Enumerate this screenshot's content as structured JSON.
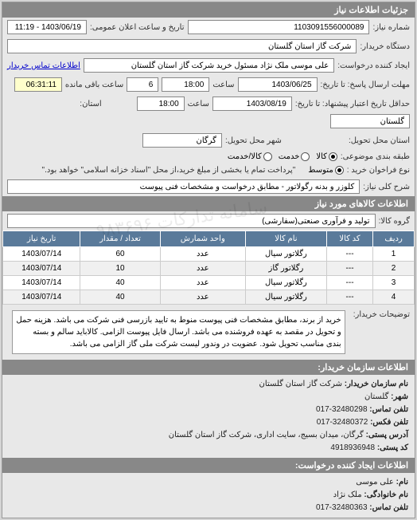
{
  "header": {
    "title": "جزئیات اطلاعات نیاز"
  },
  "form": {
    "requestNo": {
      "label": "شماره نیاز:",
      "value": "1103091556000089"
    },
    "announceDate": {
      "label": "تاریخ و ساعت اعلان عمومی:",
      "value": "1403/06/19 - 11:19"
    },
    "buyer": {
      "label": "دستگاه خریدار:",
      "value": "شرکت گاز استان گلستان"
    },
    "creator": {
      "label": "ایجاد کننده درخواست:",
      "value": "علی موسی ملک نژاد مسئول خرید شرکت گاز استان گلستان"
    },
    "contactLink": "اطلاعات تماس خریدار",
    "deadlineSend": {
      "label": "مهلت ارسال پاسخ: تا تاریخ:",
      "date": "1403/06/25",
      "timeLabel": "ساعت",
      "time": "18:00",
      "daysLeft": "6",
      "remainLabel": "ساعت باقی مانده",
      "remain": "06:31:11"
    },
    "validity": {
      "label": "حداقل تاریخ اعتبار پیشنهاد: تا تاریخ:",
      "date": "1403/08/19",
      "timeLabel": "ساعت",
      "time": "18:00"
    },
    "province": {
      "label": "استان:",
      "value": "گلستان"
    },
    "deliveryPlace": {
      "label": "استان محل تحویل:"
    },
    "city": {
      "label": "شهر محل تحویل:",
      "value": "گرگان"
    },
    "classify": {
      "label": "طبقه بندی موضوعی:",
      "options": [
        {
          "label": "کالا",
          "selected": true
        },
        {
          "label": "خدمت",
          "selected": false
        },
        {
          "label": "کالا/خدمت",
          "selected": false
        }
      ]
    },
    "paymentType": {
      "label": "نوع فراخوان خرید :",
      "options": [
        {
          "label": "متوسط",
          "selected": true
        }
      ],
      "note": "\"پرداخت تمام یا بخشی از مبلغ خرید،از محل \"اسناد خزانه اسلامی\" خواهد بود.\""
    },
    "subject": {
      "label": "شرح کلی نیاز:",
      "value": "کلوزر و بدنه رگولاتور - مطابق درخواست و مشخصات فنی پیوست"
    }
  },
  "itemsHeader": "اطلاعات کالاهای مورد نیاز",
  "group": {
    "label": "گروه کالا:",
    "value": "تولید و فرآوری صنعتی(سفارشی)"
  },
  "table": {
    "columns": [
      "ردیف",
      "کد کالا",
      "نام کالا",
      "واحد شمارش",
      "تعداد / مقدار",
      "تاریخ نیاز"
    ],
    "rows": [
      [
        "1",
        "---",
        "رگلاتور سیال",
        "عدد",
        "60",
        "1403/07/14"
      ],
      [
        "2",
        "---",
        "رگلاتور گاز",
        "عدد",
        "10",
        "1403/07/14"
      ],
      [
        "3",
        "---",
        "رگلاتور سیال",
        "عدد",
        "40",
        "1403/07/14"
      ],
      [
        "4",
        "---",
        "رگلاتور سیال",
        "عدد",
        "40",
        "1403/07/14"
      ]
    ]
  },
  "description": {
    "label": "توضیحات خریدار:",
    "text": "خرید از برند، مطابق مشخصات فنی پیوست منوط به تایید بازرسی فنی شرکت می باشد. هزینه حمل و تحویل در مقصد به عهده فروشنده می باشد. ارسال فایل پیوست الزامی. کالاباید سالم و بسته بندی مناسب تحویل شود. عضویت در وندور لیست شرکت ملی گاز الزامی می باشد."
  },
  "buyerInfoHeader": "اطلاعات سازمان خریدار:",
  "buyerInfo": {
    "orgName": {
      "label": "نام سازمان خریدار:",
      "value": "شرکت گاز استان گلستان"
    },
    "city": {
      "label": "شهر:",
      "value": "گلستان"
    },
    "phone": {
      "label": "تلفن تماس:",
      "value": "32480298-017"
    },
    "fax": {
      "label": "تلفن فکس:",
      "value": "32480372-017"
    },
    "address": {
      "label": "آدرس پستی:",
      "value": "گرگان، میدان بسیج، سایت اداری، شرکت گاز استان گلستان"
    },
    "postal": {
      "label": "کد پستی:",
      "value": "4918936948"
    }
  },
  "creatorInfoHeader": "اطلاعات ایجاد کننده درخواست:",
  "creatorInfo": {
    "name": {
      "label": "نام:",
      "value": "علی موسی"
    },
    "family": {
      "label": "نام خانوادگی:",
      "value": "ملک نژاد"
    },
    "phone": {
      "label": "تلفن تماس:",
      "value": "32480363-017"
    }
  },
  "watermark": "سامانه تدارکات ۹۸۳۶۹۶"
}
